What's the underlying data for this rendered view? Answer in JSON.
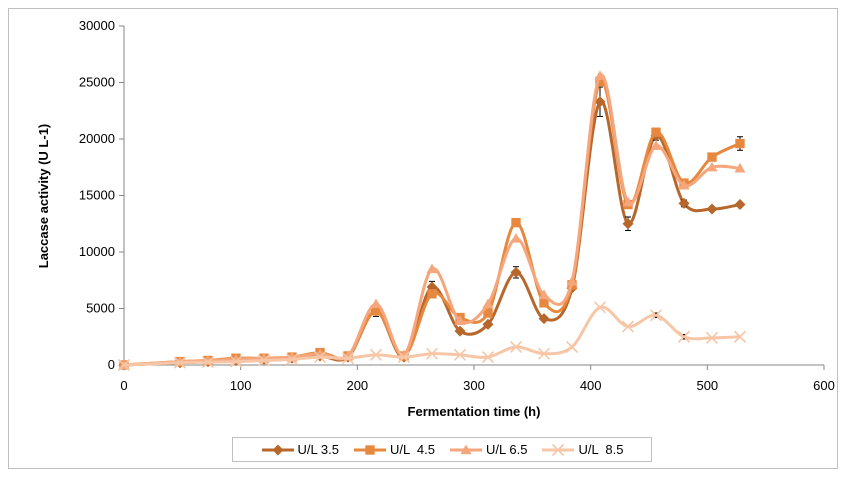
{
  "chart_data": {
    "type": "line",
    "title": "",
    "xlabel": "Fermentation time (h)",
    "ylabel": "Laccase activity (U L-1)",
    "xlim": [
      0,
      600
    ],
    "ylim": [
      0,
      30000
    ],
    "xticks": [
      "0",
      "100",
      "200",
      "300",
      "400",
      "500",
      "600"
    ],
    "yticks": [
      "0",
      "5000",
      "10000",
      "15000",
      "20000",
      "25000",
      "30000"
    ],
    "grid": false,
    "legend_position": "bottom",
    "x": [
      0,
      48,
      72,
      96,
      120,
      144,
      168,
      192,
      216,
      240,
      264,
      288,
      312,
      336,
      360,
      384,
      408,
      432,
      456,
      480,
      504,
      528
    ],
    "series": [
      {
        "name": "U/L 3.5",
        "marker": "diamond",
        "color": "#b8672c",
        "values": [
          0,
          200,
          300,
          400,
          500,
          600,
          800,
          700,
          4800,
          700,
          6900,
          3000,
          3600,
          8200,
          4100,
          6800,
          23300,
          12500,
          20300,
          14300,
          13800,
          14200
        ],
        "errors": [
          0,
          0,
          0,
          0,
          0,
          0,
          0,
          0,
          500,
          0,
          500,
          0,
          0,
          500,
          0,
          0,
          1300,
          600,
          400,
          300,
          0,
          0
        ]
      },
      {
        "name": "U/L  4.5",
        "marker": "square",
        "color": "#e6883e",
        "values": [
          0,
          300,
          400,
          600,
          600,
          700,
          1100,
          800,
          4800,
          800,
          6300,
          4200,
          4600,
          12600,
          5500,
          7100,
          25100,
          14200,
          20600,
          16100,
          18400,
          19600
        ],
        "errors": [
          0,
          0,
          0,
          0,
          0,
          0,
          0,
          0,
          0,
          0,
          0,
          0,
          0,
          0,
          0,
          0,
          0,
          0,
          0,
          0,
          0,
          600
        ]
      },
      {
        "name": "U/L 6.5",
        "marker": "triangle",
        "color": "#f5a67c",
        "values": [
          0,
          300,
          400,
          500,
          600,
          700,
          1000,
          800,
          5400,
          900,
          8500,
          3900,
          5400,
          11200,
          6200,
          7400,
          25600,
          14400,
          19400,
          15900,
          17500,
          17400
        ],
        "errors": [
          0,
          0,
          0,
          0,
          0,
          0,
          0,
          0,
          0,
          0,
          0,
          0,
          0,
          0,
          0,
          0,
          0,
          0,
          0,
          0,
          0,
          0
        ]
      },
      {
        "name": "U/L  8.5",
        "marker": "x",
        "color": "#f6c6a6",
        "values": [
          0,
          200,
          250,
          300,
          400,
          500,
          700,
          600,
          900,
          700,
          1000,
          900,
          700,
          1600,
          1000,
          1600,
          5100,
          3400,
          4400,
          2500,
          2400,
          2500
        ],
        "errors": [
          0,
          0,
          0,
          0,
          0,
          0,
          0,
          0,
          0,
          0,
          0,
          0,
          0,
          0,
          0,
          0,
          0,
          0,
          200,
          200,
          0,
          0
        ]
      }
    ]
  }
}
